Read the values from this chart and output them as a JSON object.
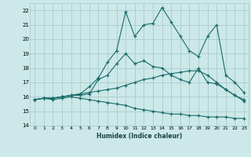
{
  "title": "",
  "xlabel": "Humidex (Indice chaleur)",
  "background_color": "#cce8e8",
  "grid_color": "#aacccc",
  "line_color": "#1a6b6b",
  "xlim": [
    -0.5,
    23.5
  ],
  "ylim": [
    14,
    22.5
  ],
  "yticks": [
    14,
    15,
    16,
    17,
    18,
    19,
    20,
    21,
    22
  ],
  "xticks": [
    0,
    1,
    2,
    3,
    4,
    5,
    6,
    7,
    8,
    9,
    10,
    11,
    12,
    13,
    14,
    15,
    16,
    17,
    18,
    19,
    20,
    21,
    22,
    23
  ],
  "line1_x": [
    0,
    1,
    2,
    3,
    4,
    5,
    6,
    7,
    8,
    9,
    10,
    11,
    12,
    13,
    14,
    15,
    16,
    17,
    18,
    19,
    20,
    21,
    22,
    23
  ],
  "line1_y": [
    15.8,
    15.9,
    15.9,
    16.0,
    16.1,
    16.2,
    16.7,
    17.3,
    18.4,
    19.2,
    21.9,
    20.2,
    21.0,
    21.1,
    22.2,
    21.2,
    20.2,
    19.2,
    18.8,
    20.2,
    21.0,
    17.5,
    17.0,
    16.3
  ],
  "line2_x": [
    0,
    1,
    2,
    3,
    4,
    5,
    6,
    7,
    8,
    9,
    10,
    11,
    12,
    13,
    14,
    15,
    16,
    17,
    18,
    19,
    20,
    21,
    22,
    23
  ],
  "line2_y": [
    15.8,
    15.9,
    15.9,
    16.0,
    16.1,
    16.1,
    16.2,
    17.2,
    17.5,
    18.3,
    19.0,
    18.3,
    18.5,
    18.1,
    18.0,
    17.5,
    17.2,
    17.0,
    18.0,
    17.0,
    16.9,
    16.5,
    16.1,
    15.8
  ],
  "line3_x": [
    0,
    1,
    2,
    3,
    4,
    5,
    6,
    7,
    8,
    9,
    10,
    11,
    12,
    13,
    14,
    15,
    16,
    17,
    18,
    19,
    20,
    21,
    22,
    23
  ],
  "line3_y": [
    15.8,
    15.9,
    15.9,
    16.0,
    16.1,
    16.2,
    16.3,
    16.4,
    16.5,
    16.6,
    16.8,
    17.0,
    17.2,
    17.3,
    17.5,
    17.6,
    17.7,
    17.8,
    17.8,
    17.5,
    17.0,
    16.5,
    16.1,
    15.7
  ],
  "line4_x": [
    0,
    1,
    2,
    3,
    4,
    5,
    6,
    7,
    8,
    9,
    10,
    11,
    12,
    13,
    14,
    15,
    16,
    17,
    18,
    19,
    20,
    21,
    22,
    23
  ],
  "line4_y": [
    15.8,
    15.9,
    15.8,
    15.9,
    16.0,
    15.9,
    15.8,
    15.7,
    15.6,
    15.5,
    15.4,
    15.2,
    15.1,
    15.0,
    14.9,
    14.8,
    14.8,
    14.7,
    14.7,
    14.6,
    14.6,
    14.6,
    14.5,
    14.5
  ]
}
